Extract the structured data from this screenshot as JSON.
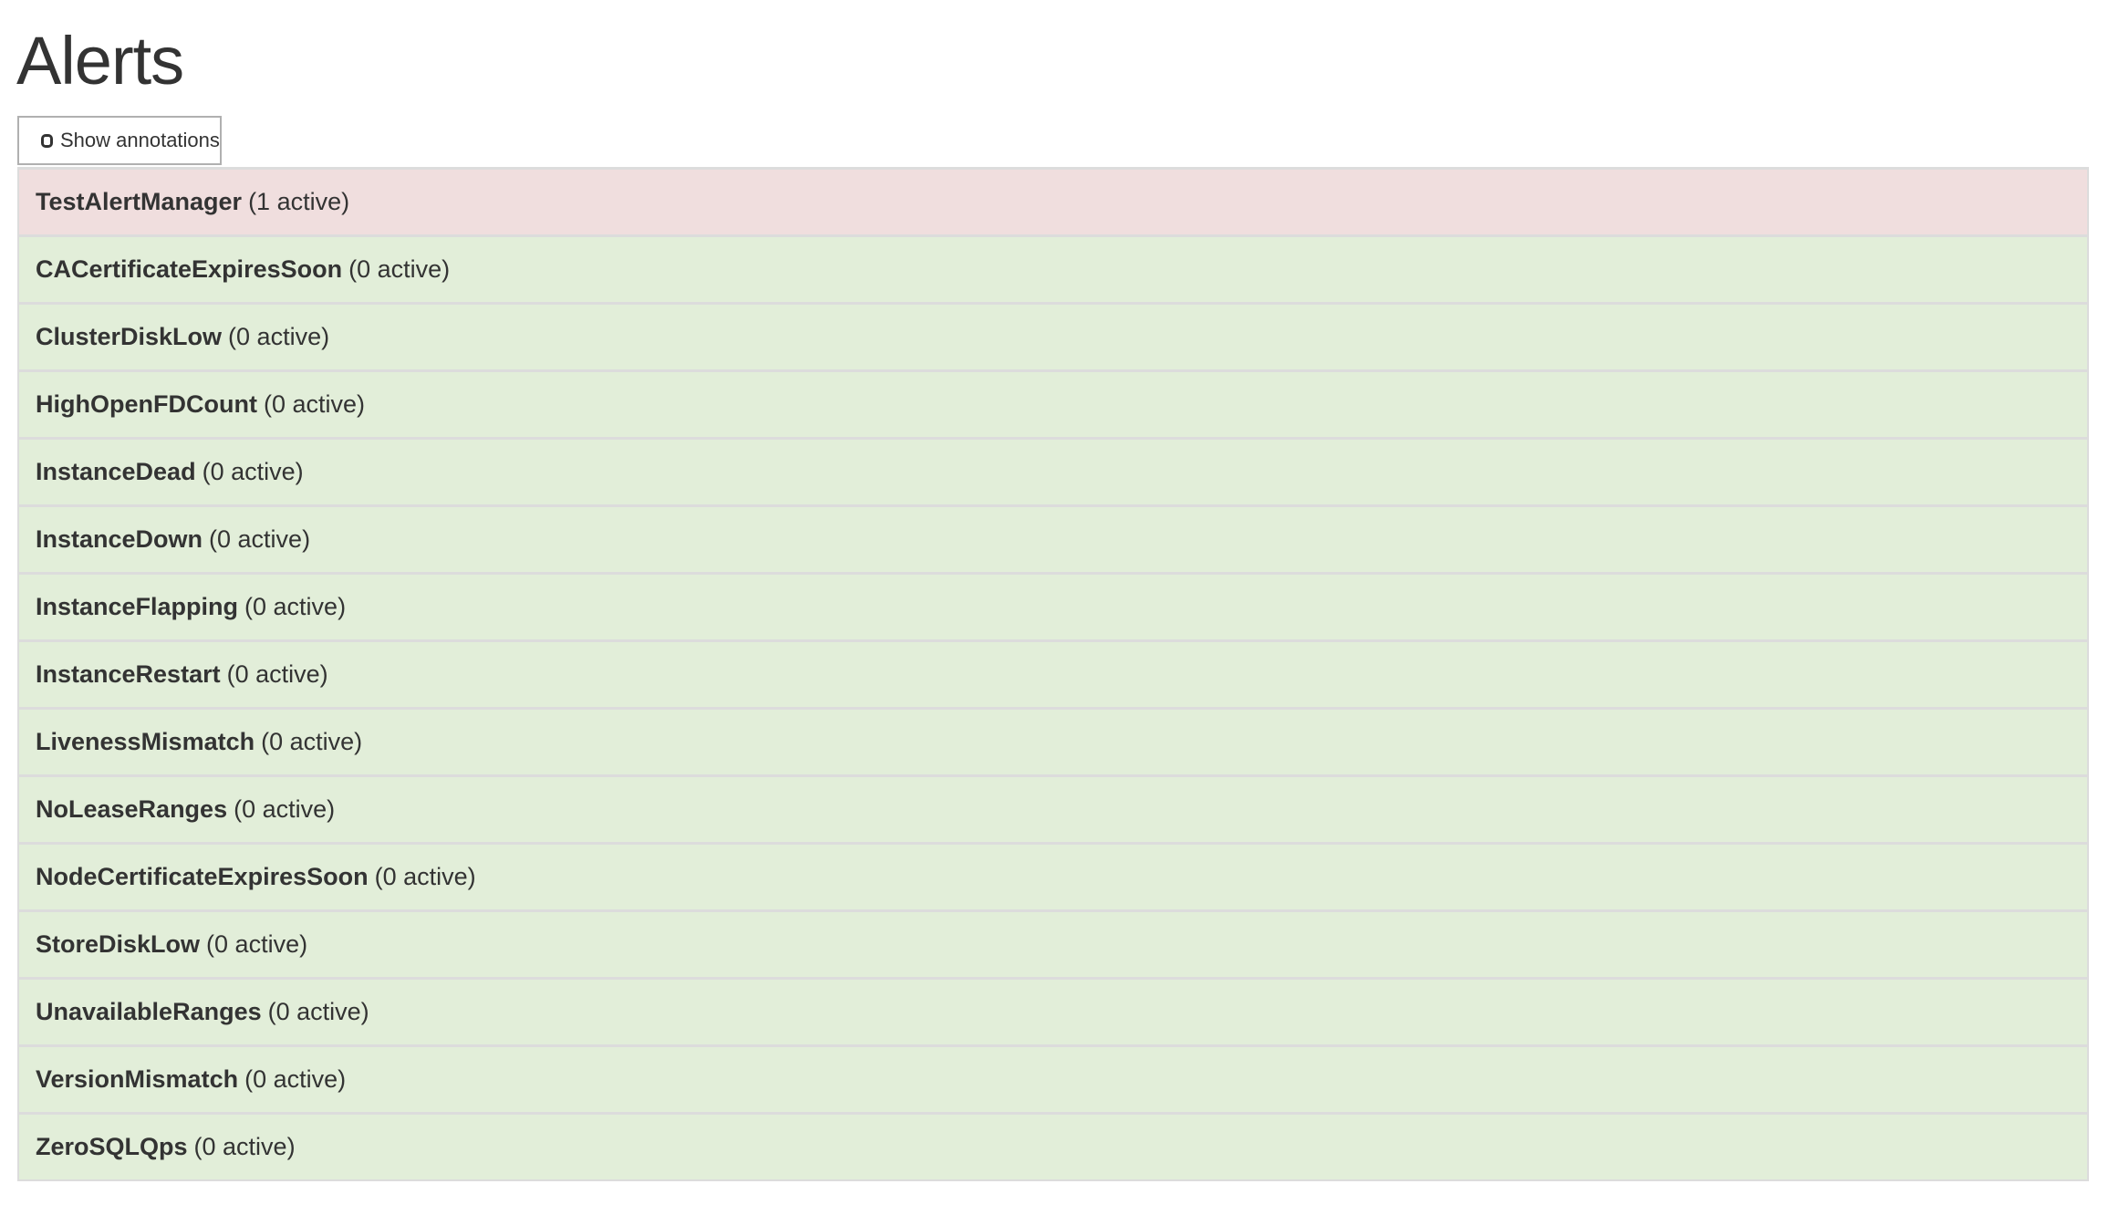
{
  "page_title": "Alerts",
  "show_annotations": {
    "label": "Show annotations",
    "checked": false
  },
  "colors": {
    "firing": "#f0dede",
    "inactive": "#e2eed9"
  },
  "alerts": [
    {
      "name": "TestAlertManager",
      "count": "(1 active)",
      "state": "firing"
    },
    {
      "name": "CACertificateExpiresSoon",
      "count": "(0 active)",
      "state": "inactive"
    },
    {
      "name": "ClusterDiskLow",
      "count": "(0 active)",
      "state": "inactive"
    },
    {
      "name": "HighOpenFDCount",
      "count": "(0 active)",
      "state": "inactive"
    },
    {
      "name": "InstanceDead",
      "count": "(0 active)",
      "state": "inactive"
    },
    {
      "name": "InstanceDown",
      "count": "(0 active)",
      "state": "inactive"
    },
    {
      "name": "InstanceFlapping",
      "count": "(0 active)",
      "state": "inactive"
    },
    {
      "name": "InstanceRestart",
      "count": "(0 active)",
      "state": "inactive"
    },
    {
      "name": "LivenessMismatch",
      "count": "(0 active)",
      "state": "inactive"
    },
    {
      "name": "NoLeaseRanges",
      "count": "(0 active)",
      "state": "inactive"
    },
    {
      "name": "NodeCertificateExpiresSoon",
      "count": "(0 active)",
      "state": "inactive"
    },
    {
      "name": "StoreDiskLow",
      "count": "(0 active)",
      "state": "inactive"
    },
    {
      "name": "UnavailableRanges",
      "count": "(0 active)",
      "state": "inactive"
    },
    {
      "name": "VersionMismatch",
      "count": "(0 active)",
      "state": "inactive"
    },
    {
      "name": "ZeroSQLQps",
      "count": "(0 active)",
      "state": "inactive"
    }
  ]
}
